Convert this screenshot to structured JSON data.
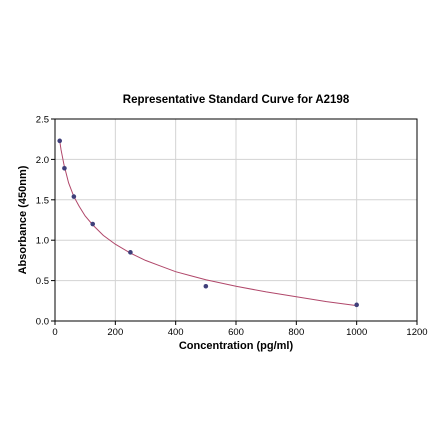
{
  "chart_data": {
    "type": "scatter",
    "title": "Representative Standard Curve for A2198",
    "xlabel": "Concentration (pg/ml)",
    "ylabel": "Absorbance (450nm)",
    "xlim": [
      0,
      1200
    ],
    "ylim": [
      0,
      2.5
    ],
    "x_ticks": [
      "0",
      "200",
      "400",
      "600",
      "800",
      "1000",
      "1200"
    ],
    "y_ticks": [
      "0.0",
      "0.5",
      "1.0",
      "1.5",
      "2.0",
      "2.5"
    ],
    "x_tick_values": [
      0,
      200,
      400,
      600,
      800,
      1000,
      1200
    ],
    "y_tick_values": [
      0,
      0.5,
      1.0,
      1.5,
      2.0,
      2.5
    ],
    "grid": true,
    "series": [
      {
        "points": [
          {
            "x": 15.6,
            "y": 2.23
          },
          {
            "x": 31.25,
            "y": 1.89
          },
          {
            "x": 62.5,
            "y": 1.54
          },
          {
            "x": 125,
            "y": 1.2
          },
          {
            "x": 250,
            "y": 0.85
          },
          {
            "x": 500,
            "y": 0.43
          },
          {
            "x": 1000,
            "y": 0.2
          }
        ],
        "fit_curve": {
          "x": [
            15.6,
            20,
            30,
            45,
            62.5,
            80,
            100,
            125,
            160,
            200,
            250,
            300,
            350,
            400,
            450,
            500,
            600,
            700,
            800,
            900,
            1000
          ],
          "y": [
            2.23,
            2.12,
            1.93,
            1.71,
            1.54,
            1.42,
            1.3,
            1.19,
            1.06,
            0.95,
            0.84,
            0.75,
            0.68,
            0.61,
            0.56,
            0.51,
            0.43,
            0.36,
            0.3,
            0.24,
            0.19
          ]
        }
      }
    ],
    "colors": {
      "marker": "#3f3f7a",
      "curve": "#b0476a",
      "grid": "#d3d3d3",
      "frame": "#000000"
    }
  }
}
